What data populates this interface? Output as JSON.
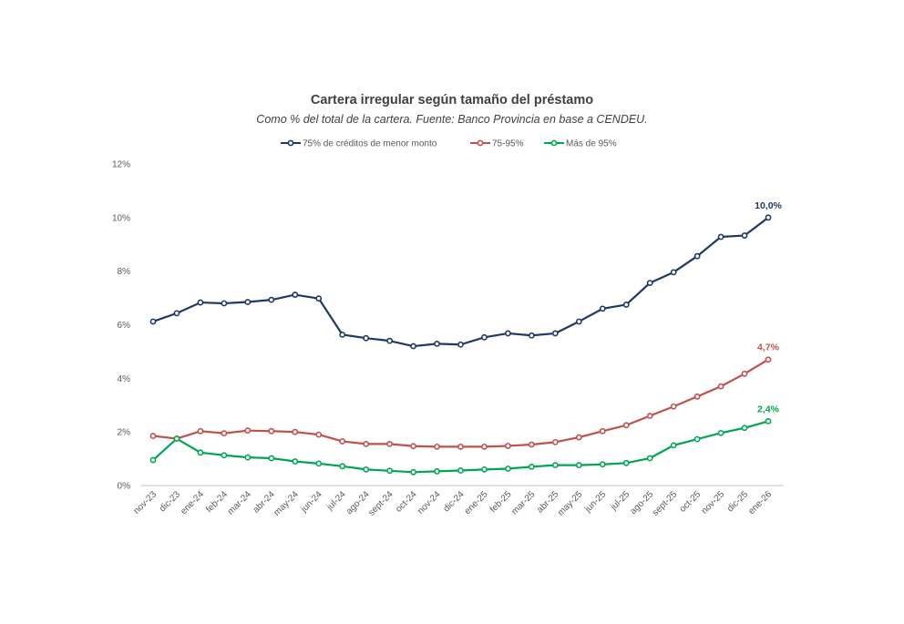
{
  "chart_data": {
    "type": "line",
    "title": "Cartera irregular según tamaño  del préstamo",
    "subtitle": "Como % del total de la cartera. Fuente: Banco Provincia en base a CENDEU.",
    "xlabel": "",
    "ylabel": "",
    "ylim": [
      0,
      12
    ],
    "yticks": [
      0,
      2,
      4,
      6,
      8,
      10,
      12
    ],
    "ytick_labels": [
      "0%",
      "2%",
      "4%",
      "6%",
      "8%",
      "10%",
      "12%"
    ],
    "legend_position": "top-center",
    "grid": false,
    "categories": [
      "nov-23",
      "dic-23",
      "ene-24",
      "feb-24",
      "mar-24",
      "abr-24",
      "may-24",
      "jun-24",
      "jul-24",
      "ago-24",
      "sept-24",
      "oct-24",
      "nov-24",
      "dic-24",
      "ene-25",
      "feb-25",
      "mar-25",
      "abr-25",
      "may-25",
      "jun-25",
      "jul-25",
      "ago-25",
      "sept-25",
      "oct-25",
      "nov-25",
      "dic-25",
      "ene-26"
    ],
    "series": [
      {
        "name": "75% de créditos de menor monto",
        "color": "#1f3864",
        "values": [
          6.12,
          6.43,
          6.83,
          6.8,
          6.85,
          6.93,
          7.12,
          6.98,
          5.63,
          5.5,
          5.4,
          5.2,
          5.29,
          5.26,
          5.53,
          5.68,
          5.6,
          5.68,
          6.12,
          6.6,
          6.75,
          7.56,
          7.96,
          8.56,
          9.28,
          9.33,
          10.0
        ],
        "end_label": "10,0%"
      },
      {
        "name": "75-95%",
        "color": "#c0504d",
        "values": [
          1.85,
          1.75,
          2.03,
          1.95,
          2.05,
          2.03,
          2.0,
          1.9,
          1.65,
          1.55,
          1.55,
          1.47,
          1.45,
          1.45,
          1.45,
          1.48,
          1.53,
          1.62,
          1.8,
          2.03,
          2.25,
          2.6,
          2.95,
          3.32,
          3.7,
          4.17,
          4.7
        ],
        "end_label": "4,7%"
      },
      {
        "name": "Más de 95%",
        "color": "#00a651",
        "values": [
          0.95,
          1.75,
          1.23,
          1.13,
          1.05,
          1.02,
          0.9,
          0.82,
          0.72,
          0.6,
          0.55,
          0.5,
          0.53,
          0.56,
          0.6,
          0.63,
          0.7,
          0.76,
          0.76,
          0.79,
          0.84,
          1.02,
          1.5,
          1.73,
          1.96,
          2.15,
          2.4
        ],
        "end_label": "2,4%"
      }
    ]
  }
}
